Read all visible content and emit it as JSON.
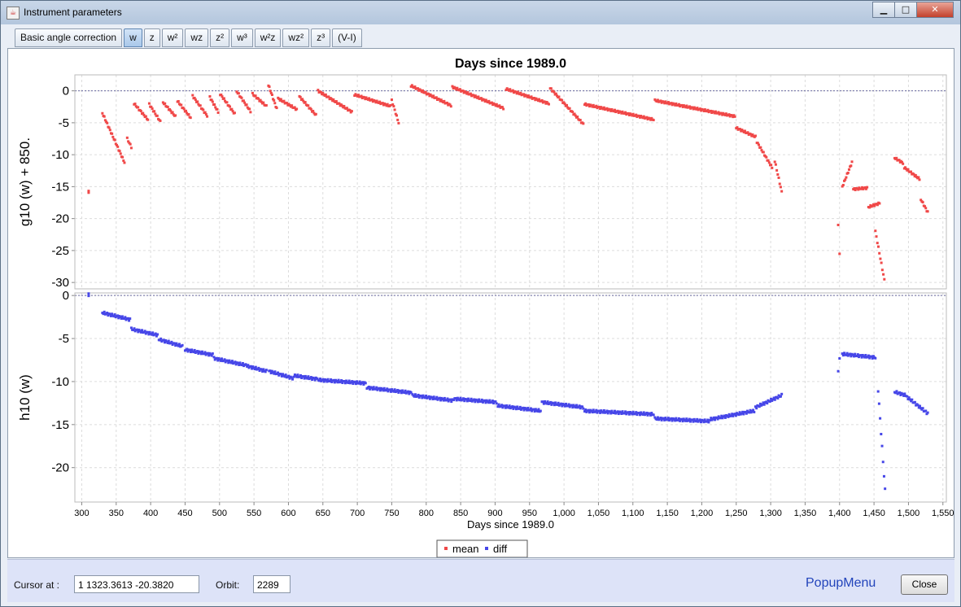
{
  "window": {
    "title": "Instrument parameters"
  },
  "window_buttons": {
    "minimize": "▁",
    "maximize": "□",
    "close": "✕"
  },
  "tabs": [
    {
      "label": "Basic angle correction",
      "active": false
    },
    {
      "label": "w",
      "active": true
    },
    {
      "label": "z",
      "active": false
    },
    {
      "label": "w²",
      "active": false
    },
    {
      "label": "wz",
      "active": false
    },
    {
      "label": "z²",
      "active": false
    },
    {
      "label": "w³",
      "active": false
    },
    {
      "label": "w²z",
      "active": false
    },
    {
      "label": "wz²",
      "active": false
    },
    {
      "label": "z³",
      "active": false
    },
    {
      "label": "(V-I)",
      "active": false
    }
  ],
  "chart_data": {
    "type": "scatter",
    "title": "Days since 1989.0",
    "xlabel": "Days since 1989.0",
    "xlim": [
      290,
      1555
    ],
    "xticks": [
      300,
      350,
      400,
      450,
      500,
      550,
      600,
      650,
      700,
      750,
      800,
      850,
      900,
      950,
      1000,
      1050,
      1100,
      1150,
      1200,
      1250,
      1300,
      1350,
      1400,
      1450,
      1500,
      1550
    ],
    "xtick_labels": [
      "300",
      "350",
      "400",
      "450",
      "500",
      "550",
      "600",
      "650",
      "700",
      "750",
      "800",
      "850",
      "900",
      "950",
      "1,000",
      "1,050",
      "1,100",
      "1,150",
      "1,200",
      "1,250",
      "1,300",
      "1,350",
      "1,400",
      "1,450",
      "1,500",
      "1,550"
    ],
    "grid": true,
    "legend": {
      "placement": "bottom-center",
      "entries": [
        {
          "name": "mean",
          "color": "#f04848"
        },
        {
          "name": "diff",
          "color": "#4646e8"
        }
      ]
    },
    "panels": [
      {
        "ylabel": "g10 (w) + 850.",
        "ylim": [
          -31,
          2.5
        ],
        "yticks": [
          0,
          -5,
          -10,
          -15,
          -20,
          -25,
          -30
        ],
        "reference_line": 0,
        "series": [
          {
            "name": "mean",
            "color": "#f04848",
            "segments": [
              [
                310,
                -15.8,
                310,
                -15.8
              ],
              [
                330,
                -3.5,
                362,
                -11.2
              ],
              [
                366,
                -7.5,
                372,
                -8.8
              ],
              [
                376,
                -2.0,
                396,
                -4.5
              ],
              [
                398,
                -2.1,
                414,
                -4.8
              ],
              [
                418,
                -1.8,
                436,
                -4.0
              ],
              [
                439,
                -1.6,
                458,
                -4.2
              ],
              [
                461,
                -0.8,
                482,
                -3.9
              ],
              [
                486,
                -1.0,
                498,
                -3.3
              ],
              [
                501,
                -0.5,
                522,
                -3.6
              ],
              [
                525,
                -0.1,
                545,
                -3.2
              ],
              [
                548,
                -0.5,
                568,
                -2.4
              ],
              [
                571,
                0.9,
                583,
                -2.8
              ],
              [
                585,
                -1.2,
                612,
                -2.9
              ],
              [
                616,
                -0.9,
                640,
                -3.8
              ],
              [
                643,
                0.0,
                692,
                -3.3
              ],
              [
                696,
                -0.6,
                748,
                -2.4
              ],
              [
                750,
                -1.5,
                760,
                -5.0
              ],
              [
                778,
                0.8,
                836,
                -2.3
              ],
              [
                838,
                0.6,
                912,
                -2.7
              ],
              [
                916,
                0.3,
                978,
                -2.0
              ],
              [
                980,
                0.4,
                1028,
                -5.2
              ],
              [
                1030,
                -2.1,
                1130,
                -4.5
              ],
              [
                1132,
                -1.5,
                1248,
                -4.0
              ],
              [
                1250,
                -5.8,
                1278,
                -7.2
              ],
              [
                1280,
                -8.0,
                1302,
                -12.0
              ],
              [
                1306,
                -11.0,
                1316,
                -15.8
              ],
              [
                1398,
                -21.0,
                1400,
                -25.4
              ],
              [
                1404,
                -15.0,
                1418,
                -11.2
              ],
              [
                1420,
                -15.4,
                1440,
                -15.2
              ],
              [
                1442,
                -18.2,
                1458,
                -17.6
              ],
              [
                1452,
                -22.0,
                1465,
                -29.6
              ],
              [
                1480,
                -10.5,
                1492,
                -11.3
              ],
              [
                1494,
                -12.0,
                1516,
                -13.8
              ],
              [
                1518,
                -17.0,
                1528,
                -19.0
              ]
            ]
          }
        ]
      },
      {
        "ylabel": "h10 (w)",
        "ylim": [
          -24,
          0.3
        ],
        "yticks": [
          0,
          -5,
          -10,
          -15,
          -20
        ],
        "reference_line": 0,
        "series": [
          {
            "name": "diff",
            "color": "#4646e8",
            "segments": [
              [
                310,
                0.1,
                310,
                0.1
              ],
              [
                330,
                -2.0,
                370,
                -2.8
              ],
              [
                372,
                -3.9,
                410,
                -4.6
              ],
              [
                412,
                -5.1,
                446,
                -5.9
              ],
              [
                450,
                -6.3,
                490,
                -6.9
              ],
              [
                492,
                -7.3,
                538,
                -8.1
              ],
              [
                540,
                -8.2,
                568,
                -8.8
              ],
              [
                572,
                -8.8,
                606,
                -9.6
              ],
              [
                608,
                -9.3,
                640,
                -9.7
              ],
              [
                642,
                -9.8,
                712,
                -10.2
              ],
              [
                714,
                -10.7,
                778,
                -11.3
              ],
              [
                780,
                -11.6,
                838,
                -12.2
              ],
              [
                840,
                -12.0,
                902,
                -12.4
              ],
              [
                904,
                -12.8,
                966,
                -13.4
              ],
              [
                968,
                -12.4,
                1028,
                -13.0
              ],
              [
                1030,
                -13.4,
                1130,
                -13.8
              ],
              [
                1132,
                -14.3,
                1210,
                -14.6
              ],
              [
                1212,
                -14.4,
                1276,
                -13.4
              ],
              [
                1278,
                -13.0,
                1316,
                -11.6
              ],
              [
                1398,
                -8.8,
                1400,
                -7.2
              ],
              [
                1404,
                -6.8,
                1452,
                -7.2
              ],
              [
                1456,
                -11.0,
                1466,
                -22.6
              ],
              [
                1480,
                -11.2,
                1496,
                -11.6
              ],
              [
                1498,
                -11.8,
                1528,
                -13.7
              ]
            ]
          }
        ]
      }
    ]
  },
  "status_bar": {
    "cursor_label": "Cursor at :",
    "cursor_value": "1  1323.3613  -20.3820",
    "orbit_label": "Orbit:",
    "orbit_value": "2289",
    "popup_menu": "PopupMenu",
    "close_label": "Close"
  }
}
